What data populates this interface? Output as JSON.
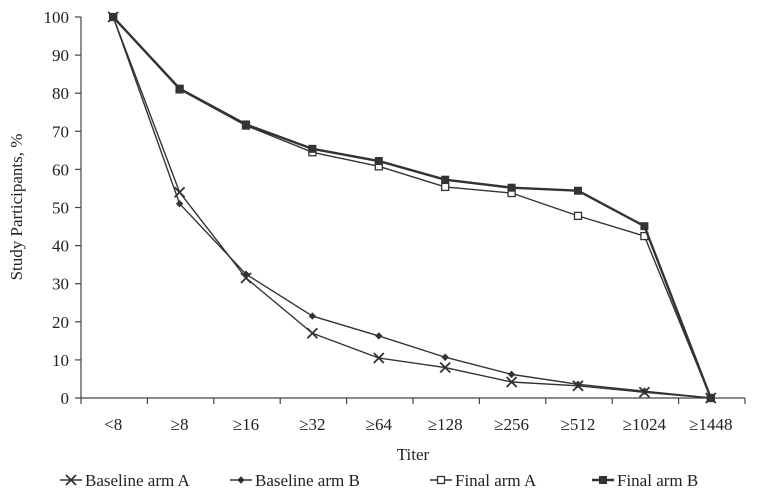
{
  "chart_data": {
    "type": "line",
    "title": "",
    "xlabel": "Titer",
    "ylabel": "Study Participants, %",
    "ylim": [
      0,
      100
    ],
    "yticks": [
      0,
      10,
      20,
      30,
      40,
      50,
      60,
      70,
      80,
      90,
      100
    ],
    "categories": [
      "<8",
      "≥8",
      "≥16",
      "≥32",
      "≥64",
      "≥128",
      "≥256",
      "≥512",
      "≥1024",
      "≥1448"
    ],
    "grid": false,
    "legend_position": "bottom",
    "series": [
      {
        "name": "Baseline arm A",
        "marker": "x",
        "color": "#333333",
        "values": [
          100,
          54,
          31.5,
          17,
          10.5,
          8,
          4.2,
          3.2,
          1.5,
          0
        ]
      },
      {
        "name": "Baseline arm B",
        "marker": "diamond",
        "color": "#333333",
        "values": [
          100,
          51,
          32.5,
          21.5,
          16.3,
          10.7,
          6.2,
          3.6,
          1.8,
          0
        ]
      },
      {
        "name": "Final arm A",
        "marker": "square-open",
        "color": "#333333",
        "values": [
          100,
          81,
          71.5,
          64.5,
          60.8,
          55.4,
          53.8,
          47.8,
          42.5,
          0
        ]
      },
      {
        "name": "Final arm B",
        "marker": "square-filled",
        "color": "#333333",
        "values": [
          100,
          81.2,
          71.8,
          65.4,
          62.2,
          57.3,
          55.2,
          54.4,
          45.1,
          0
        ]
      }
    ]
  }
}
